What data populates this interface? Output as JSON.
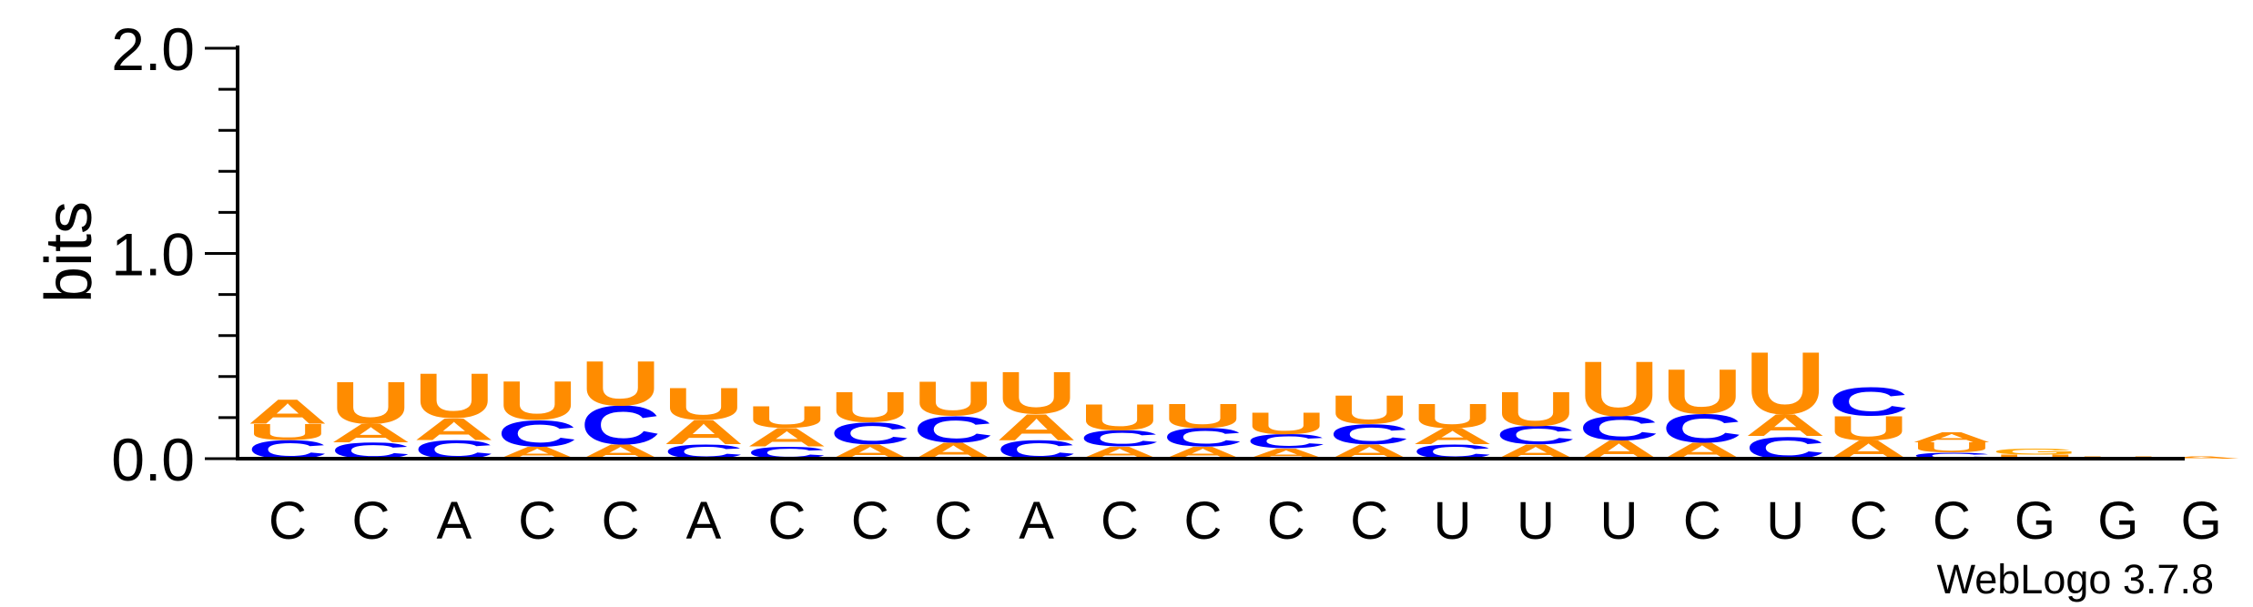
{
  "chart_data": {
    "type": "sequence-logo",
    "ylabel": "bits",
    "ylim": [
      0,
      2.0
    ],
    "yticks": [
      "0.0",
      "1.0",
      "2.0"
    ],
    "credit": "WebLogo 3.7.8",
    "positions": [
      "C",
      "C",
      "A",
      "C",
      "C",
      "A",
      "C",
      "C",
      "C",
      "A",
      "C",
      "C",
      "C",
      "C",
      "U",
      "U",
      "U",
      "C",
      "U",
      "C",
      "C",
      "G",
      "G",
      "G"
    ],
    "colors": {
      "A": "#ff8c00",
      "C": "#0000ff",
      "G": "#ffa500",
      "U": "#ff8c00"
    },
    "stacks": [
      [
        [
          "C",
          0.09
        ],
        [
          "U",
          0.08
        ],
        [
          "A",
          0.12
        ]
      ],
      [
        [
          "C",
          0.08
        ],
        [
          "A",
          0.09
        ],
        [
          "U",
          0.21
        ]
      ],
      [
        [
          "C",
          0.09
        ],
        [
          "A",
          0.11
        ],
        [
          "U",
          0.22
        ]
      ],
      [
        [
          "A",
          0.06
        ],
        [
          "C",
          0.13
        ],
        [
          "U",
          0.19
        ]
      ],
      [
        [
          "A",
          0.07
        ],
        [
          "C",
          0.19
        ],
        [
          "U",
          0.22
        ]
      ],
      [
        [
          "C",
          0.07
        ],
        [
          "A",
          0.12
        ],
        [
          "U",
          0.16
        ]
      ],
      [
        [
          "C",
          0.06
        ],
        [
          "A",
          0.09
        ],
        [
          "U",
          0.11
        ]
      ],
      [
        [
          "A",
          0.07
        ],
        [
          "C",
          0.11
        ],
        [
          "U",
          0.15
        ]
      ],
      [
        [
          "A",
          0.08
        ],
        [
          "C",
          0.13
        ],
        [
          "U",
          0.17
        ]
      ],
      [
        [
          "C",
          0.09
        ],
        [
          "A",
          0.13
        ],
        [
          "U",
          0.21
        ]
      ],
      [
        [
          "A",
          0.06
        ],
        [
          "C",
          0.08
        ],
        [
          "U",
          0.13
        ]
      ],
      [
        [
          "A",
          0.06
        ],
        [
          "C",
          0.09
        ],
        [
          "U",
          0.12
        ]
      ],
      [
        [
          "A",
          0.05
        ],
        [
          "C",
          0.07
        ],
        [
          "U",
          0.11
        ]
      ],
      [
        [
          "A",
          0.07
        ],
        [
          "C",
          0.1
        ],
        [
          "U",
          0.14
        ]
      ],
      [
        [
          "C",
          0.07
        ],
        [
          "A",
          0.08
        ],
        [
          "U",
          0.12
        ]
      ],
      [
        [
          "A",
          0.07
        ],
        [
          "C",
          0.09
        ],
        [
          "U",
          0.17
        ]
      ],
      [
        [
          "A",
          0.09
        ],
        [
          "C",
          0.12
        ],
        [
          "U",
          0.27
        ]
      ],
      [
        [
          "A",
          0.08
        ],
        [
          "C",
          0.14
        ],
        [
          "U",
          0.22
        ]
      ],
      [
        [
          "C",
          0.11
        ],
        [
          "A",
          0.11
        ],
        [
          "U",
          0.31
        ]
      ],
      [
        [
          "A",
          0.09
        ],
        [
          "U",
          0.12
        ],
        [
          "C",
          0.14
        ]
      ],
      [
        [
          "C",
          0.03
        ],
        [
          "U",
          0.05
        ],
        [
          "A",
          0.05
        ]
      ],
      [
        [
          "U",
          0.02
        ],
        [
          "G",
          0.03
        ]
      ],
      [
        [
          "U",
          0.01
        ]
      ],
      [
        [
          "A",
          0.01
        ]
      ]
    ]
  }
}
